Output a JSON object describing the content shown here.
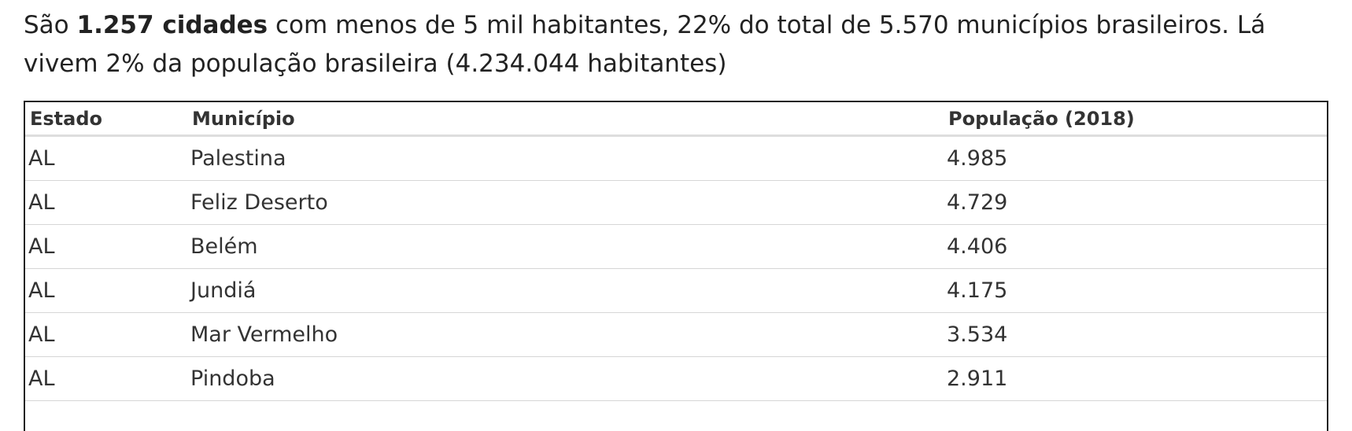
{
  "intro": {
    "before": "São",
    "bold": "1.257 cidades",
    "after": "com menos de 5 mil habitantes, 22% do total de 5.570 municípios brasileiros. Lá vivem 2% da população brasileira (4.234.044 habitantes)"
  },
  "table": {
    "header": [
      "Estado",
      "Município",
      "População (2018)"
    ],
    "rows": [
      [
        "AL",
        "Palestina",
        "4.985"
      ],
      [
        "AL",
        "Feliz Deserto",
        "4.729"
      ],
      [
        "AL",
        "Belém",
        "4.406"
      ],
      [
        "AL",
        "Jundiá",
        "4.175"
      ],
      [
        "AL",
        "Mar Vermelho",
        "3.534"
      ],
      [
        "AL",
        "Pindoba",
        "2.911"
      ]
    ]
  }
}
